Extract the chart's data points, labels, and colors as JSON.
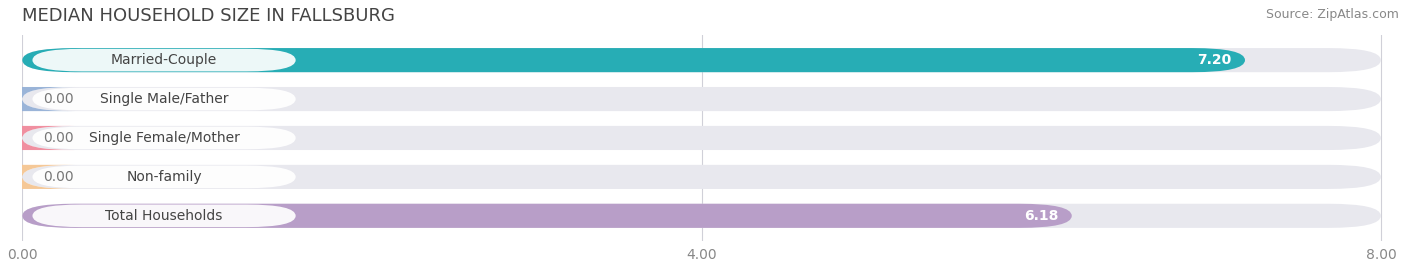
{
  "title": "MEDIAN HOUSEHOLD SIZE IN FALLSBURG",
  "source": "Source: ZipAtlas.com",
  "categories": [
    "Married-Couple",
    "Single Male/Father",
    "Single Female/Mother",
    "Non-family",
    "Total Households"
  ],
  "values": [
    7.2,
    0.0,
    0.0,
    0.0,
    6.18
  ],
  "bar_colors": [
    "#27adb5",
    "#9ab4d8",
    "#f08fa0",
    "#f5c897",
    "#b89ec8"
  ],
  "background_color": "#ffffff",
  "bar_bg_color": "#e8e8ee",
  "xlim": [
    0,
    8.0
  ],
  "xticks": [
    0.0,
    4.0,
    8.0
  ],
  "xtick_labels": [
    "0.00",
    "4.00",
    "8.00"
  ],
  "label_fontsize": 10,
  "value_fontsize": 10,
  "title_fontsize": 13,
  "source_fontsize": 9,
  "bar_height": 0.62,
  "value_color_inside": "#ffffff",
  "value_color_outside": "#777777",
  "label_text_color": "#444444",
  "title_color": "#444444",
  "source_color": "#888888",
  "tick_color": "#888888",
  "grid_color": "#d0d0d8"
}
